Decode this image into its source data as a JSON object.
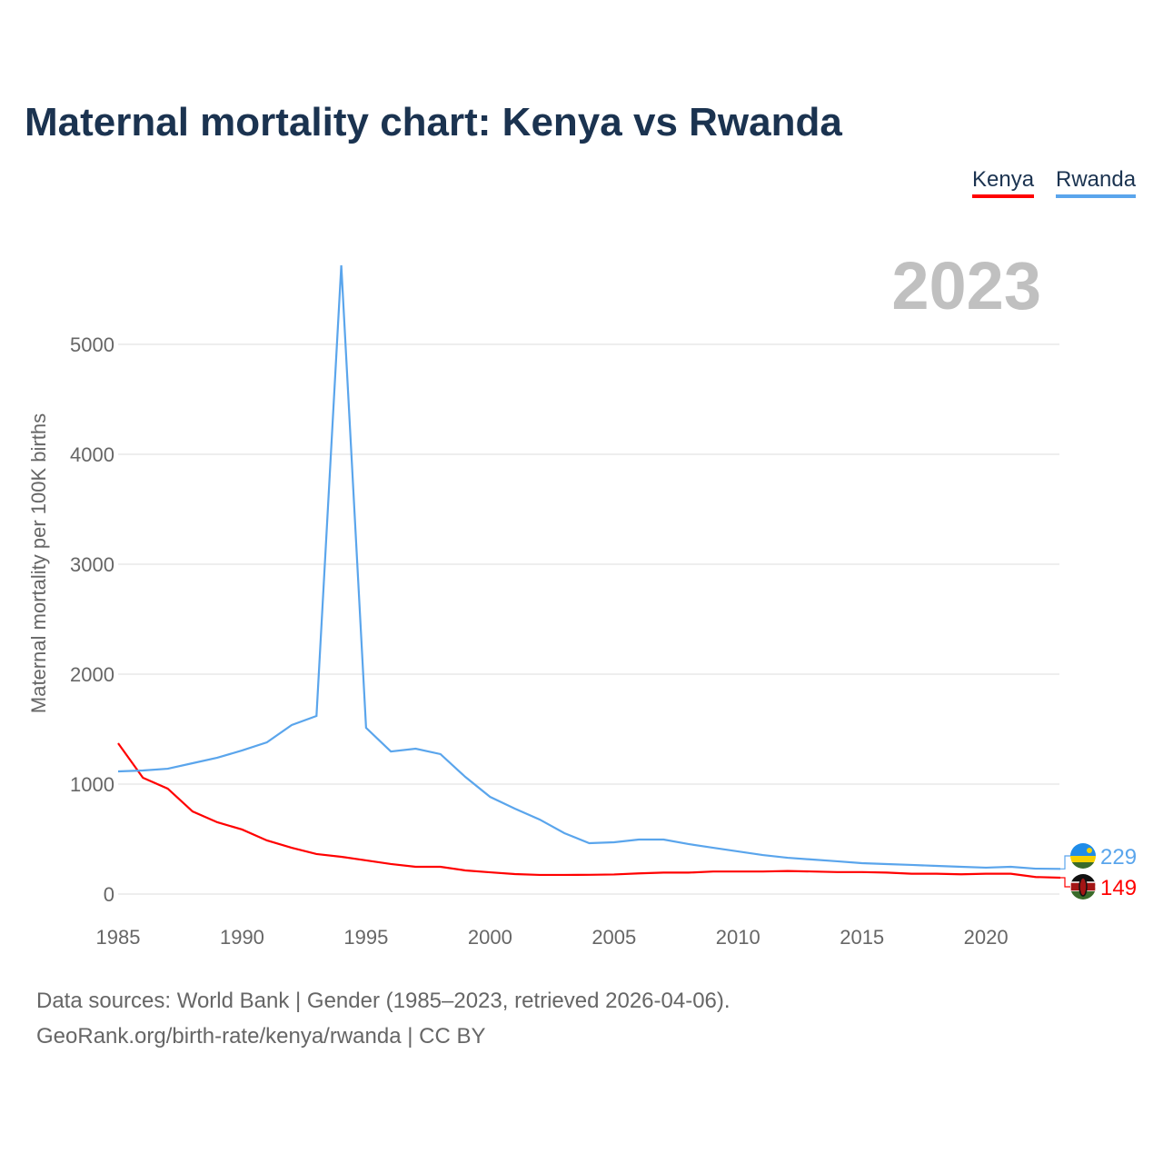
{
  "title": "Maternal mortality chart: Kenya vs Rwanda",
  "legend": [
    "Kenya",
    "Rwanda"
  ],
  "footer": {
    "line1": "Data sources: World Bank | Gender (1985–2023, retrieved 2026-04-06).",
    "line2": "GeoRank.org/birth-rate/kenya/rwanda | CC BY"
  },
  "chart_data": {
    "type": "line",
    "title": "Maternal mortality chart: Kenya vs Rwanda",
    "year_label": "2023",
    "xlabel": "",
    "ylabel": "Maternal mortality per 100K births",
    "xlim": [
      1985,
      2023
    ],
    "ylim": [
      0,
      5000
    ],
    "x_ticks": [
      1985,
      1990,
      1995,
      2000,
      2005,
      2010,
      2015,
      2020
    ],
    "y_ticks": [
      0,
      1000,
      2000,
      3000,
      4000,
      5000
    ],
    "grid": true,
    "legend_placement": "top-right",
    "x": [
      1985,
      1986,
      1987,
      1988,
      1989,
      1990,
      1991,
      1992,
      1993,
      1994,
      1995,
      1996,
      1997,
      1998,
      1999,
      2000,
      2001,
      2002,
      2003,
      2004,
      2005,
      2006,
      2007,
      2008,
      2009,
      2010,
      2011,
      2012,
      2013,
      2014,
      2015,
      2016,
      2017,
      2018,
      2019,
      2020,
      2021,
      2022,
      2023
    ],
    "series": [
      {
        "name": "Kenya",
        "color": "#ff0000",
        "end_label": "149",
        "values": [
          1372,
          1058,
          959,
          752,
          653,
          587,
          488,
          421,
          364,
          339,
          306,
          273,
          248,
          248,
          215,
          198,
          182,
          174,
          174,
          175,
          178,
          188,
          195,
          195,
          205,
          205,
          205,
          210,
          205,
          200,
          200,
          195,
          185,
          185,
          180,
          185,
          185,
          155,
          149
        ]
      },
      {
        "name": "Rwanda",
        "color": "#5aa5ec",
        "end_label": "229",
        "values": [
          1116,
          1124,
          1140,
          1190,
          1240,
          1306,
          1380,
          1537,
          1620,
          5719,
          1512,
          1297,
          1322,
          1273,
          1066,
          884,
          777,
          678,
          554,
          463,
          471,
          496,
          496,
          455,
          421,
          388,
          355,
          330,
          314,
          298,
          281,
          273,
          265,
          256,
          248,
          240,
          248,
          231,
          229
        ]
      }
    ]
  }
}
